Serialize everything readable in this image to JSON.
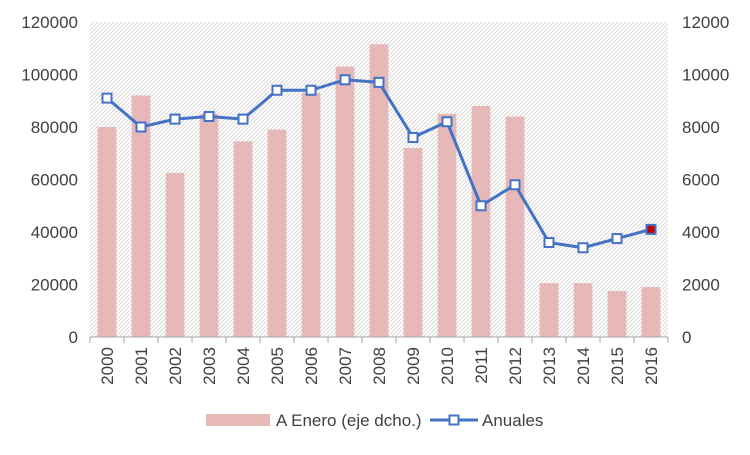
{
  "chart_data": {
    "type": "bar+line",
    "categories": [
      "2000",
      "2001",
      "2002",
      "2003",
      "2004",
      "2005",
      "2006",
      "2007",
      "2008",
      "2009",
      "2010",
      "2011",
      "2012",
      "2013",
      "2014",
      "2015",
      "2016"
    ],
    "series": [
      {
        "name": "A Enero (eje dcho.)",
        "kind": "bar",
        "axis": "right",
        "color": "#e6b8b7",
        "values": [
          8000,
          9200,
          6250,
          8500,
          7450,
          7900,
          9300,
          10300,
          11150,
          7200,
          8500,
          8800,
          8400,
          2050,
          2050,
          1750,
          1900
        ]
      },
      {
        "name": "Anuales",
        "kind": "line",
        "axis": "left",
        "color": "#4472c4",
        "values": [
          91000,
          80000,
          83000,
          84000,
          83000,
          94000,
          94000,
          98000,
          97000,
          76000,
          82000,
          50000,
          58000,
          36000,
          34000,
          37500,
          41000
        ]
      }
    ],
    "y_left": {
      "min": 0,
      "max": 120000,
      "ticks": [
        "0",
        "20000",
        "40000",
        "60000",
        "80000",
        "100000",
        "120000"
      ]
    },
    "y_right": {
      "min": 0,
      "max": 12000,
      "ticks": [
        "0",
        "2000",
        "4000",
        "6000",
        "8000",
        "10000",
        "12000"
      ]
    },
    "legend_position": "bottom",
    "plot_background": "hatched-grey"
  }
}
